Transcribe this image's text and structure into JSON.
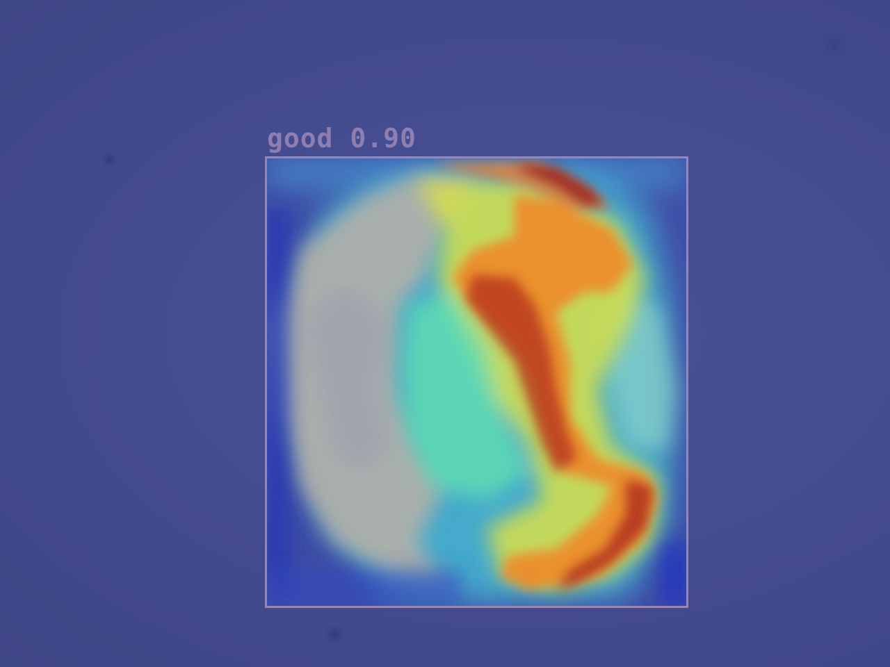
{
  "detection": {
    "class_label": "good",
    "confidence": "0.90",
    "box_color": "#9a86b4"
  },
  "scene": {
    "background_color": "#434a8c",
    "overlay": "heatmap-jet",
    "object": "gemstone-crystal"
  }
}
